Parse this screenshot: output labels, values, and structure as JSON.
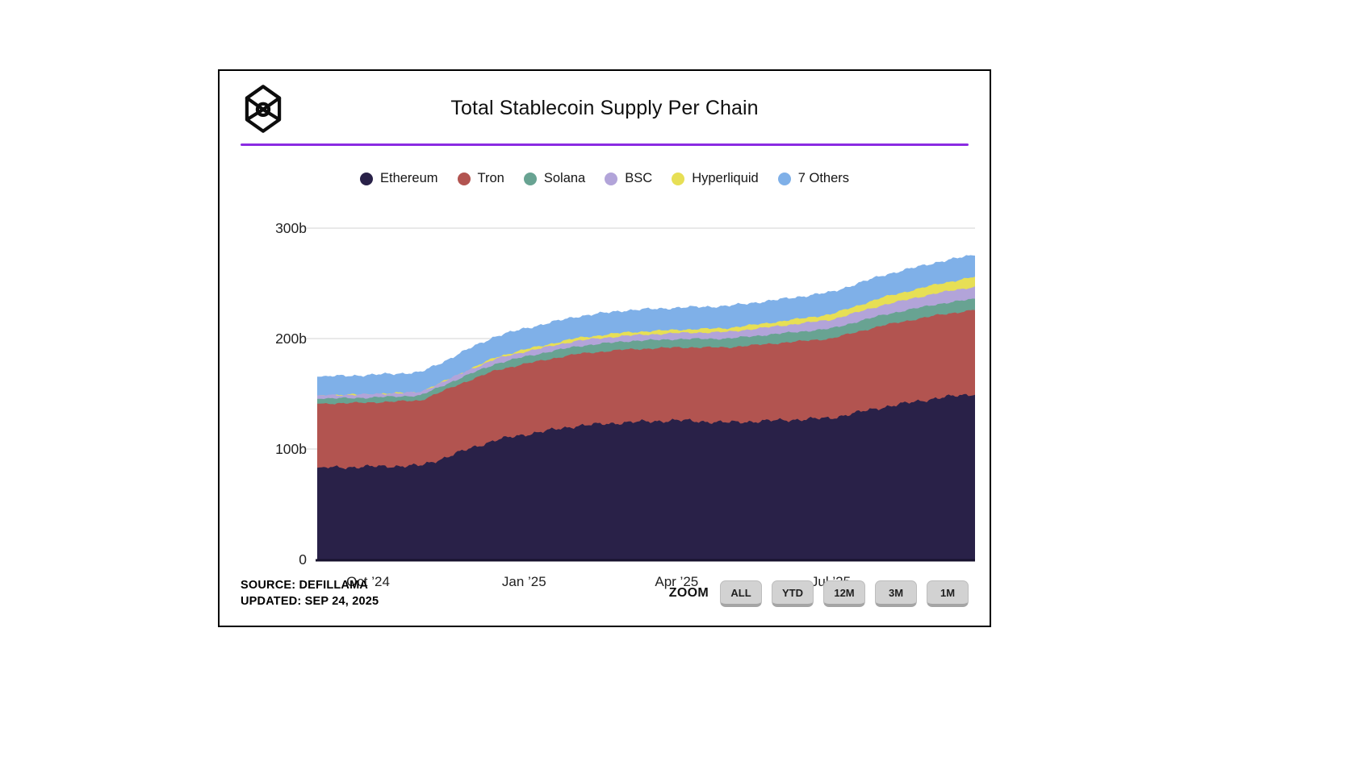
{
  "header": {
    "title": "Total Stablecoin Supply Per Chain",
    "logo": "blockworks-cube-logo"
  },
  "accent_color": "#8a2be2",
  "legend": {
    "items": [
      {
        "label": "Ethereum",
        "color": "#292148"
      },
      {
        "label": "Tron",
        "color": "#b25450"
      },
      {
        "label": "Solana",
        "color": "#68a392"
      },
      {
        "label": "BSC",
        "color": "#b2a4d9"
      },
      {
        "label": "Hyperliquid",
        "color": "#e7df55"
      },
      {
        "label": "7 Others",
        "color": "#7fb0e8"
      }
    ]
  },
  "chart_data": {
    "type": "area",
    "stacked": true,
    "title": "Total Stablecoin Supply Per Chain",
    "unit": "billions of USD (b)",
    "legend_position": "top",
    "ylim": [
      0,
      300
    ],
    "gridlines": [
      100,
      200,
      300
    ],
    "yticks": [
      {
        "value": 0,
        "label": "0"
      },
      {
        "value": 100,
        "label": "100b"
      },
      {
        "value": 200,
        "label": "200b"
      },
      {
        "value": 300,
        "label": "300b"
      }
    ],
    "x_days": [
      0,
      30,
      61,
      75,
      91,
      105,
      122,
      153,
      181,
      212,
      242,
      273,
      303,
      334,
      365,
      388
    ],
    "x_dates_approx": [
      "Sep '24",
      "Oct '24",
      "Nov '24",
      "mid-Nov '24",
      "Dec '24",
      "mid-Dec '24",
      "Jan '25",
      "Feb '25",
      "Mar '25",
      "Apr '25",
      "May '25",
      "Jun '25",
      "Jul '25",
      "Aug '25",
      "Sep '25",
      "Sep 24 '25"
    ],
    "xticks": [
      {
        "day": 30,
        "label": "Oct ’24"
      },
      {
        "day": 122,
        "label": "Jan ’25"
      },
      {
        "day": 212,
        "label": "Apr ’25"
      },
      {
        "day": 303,
        "label": "Jul ’25"
      }
    ],
    "series": [
      {
        "name": "Ethereum",
        "color": "#292148",
        "values": [
          83,
          84,
          85,
          92,
          101,
          108,
          113,
          121,
          124,
          126,
          124,
          126,
          128,
          138,
          146,
          150
        ]
      },
      {
        "name": "Tron",
        "color": "#b25450",
        "values": [
          58,
          58,
          59,
          61,
          62,
          63,
          64,
          65,
          66,
          66,
          68,
          70,
          72,
          74,
          75,
          76
        ]
      },
      {
        "name": "Solana",
        "color": "#68a392",
        "values": [
          4.5,
          4.5,
          4.5,
          5,
          5.5,
          6,
          6.5,
          7,
          7.5,
          7.5,
          8,
          8.5,
          9,
          9.5,
          10,
          10
        ]
      },
      {
        "name": "BSC",
        "color": "#b2a4d9",
        "values": [
          3,
          3,
          3,
          3.5,
          4,
          4.5,
          4.5,
          5,
          5,
          5.5,
          6,
          7,
          8,
          9,
          10,
          11
        ]
      },
      {
        "name": "Hyperliquid",
        "color": "#e7df55",
        "values": [
          0,
          0,
          0,
          0,
          0.5,
          1.5,
          2,
          2.5,
          3,
          3,
          3.5,
          4,
          5,
          7,
          8,
          9
        ]
      },
      {
        "name": "7 Others",
        "color": "#7fb0e8",
        "values": [
          17,
          17.5,
          18,
          18,
          19,
          19,
          19,
          19.5,
          20,
          20,
          20,
          20,
          20,
          20,
          20,
          20
        ]
      }
    ]
  },
  "footer": {
    "source_line1": "SOURCE: DEFILLAMA",
    "source_line2": "UPDATED: SEP 24, 2025",
    "zoom_label": "ZOOM",
    "zoom_buttons": [
      "ALL",
      "YTD",
      "12M",
      "3M",
      "1M"
    ]
  }
}
